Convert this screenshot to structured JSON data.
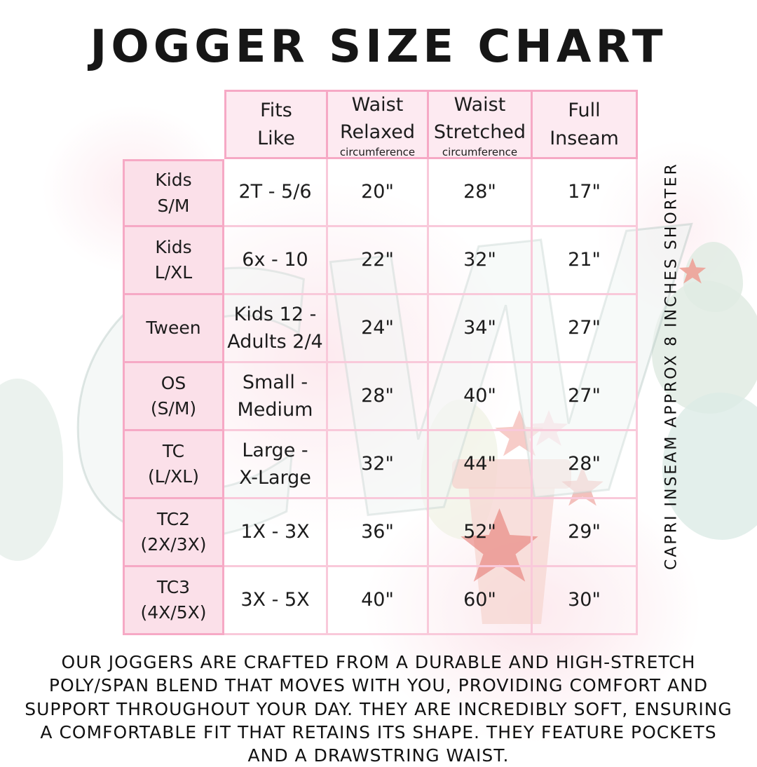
{
  "title": "JOGGER SIZE CHART",
  "watermark": "CW",
  "side_note": "CAPRI INSEAM APPROX 8 INCHES SHORTER",
  "description": "OUR JOGGERS ARE CRAFTED FROM A DURABLE AND HIGH-STRETCH POLY/SPAN BLEND THAT MOVES WITH YOU, PROVIDING COMFORT AND SUPPORT THROUGHOUT YOUR DAY. THEY ARE INCREDIBLY SOFT, ENSURING A COMFORTABLE FIT THAT RETAINS ITS SHAPE. THEY FEATURE POCKETS AND A DRAWSTRING WAIST.",
  "colors": {
    "border_strong_pink": "#f6a9c5",
    "grid_light_pink": "#f9c9da",
    "header_fill": "#fdeaf1",
    "label_fill": "#fbe0e9",
    "text": "#161616"
  },
  "table": {
    "columns": [
      {
        "label": "Fits\nLike",
        "sub": ""
      },
      {
        "label": "Waist\nRelaxed",
        "sub": "circumference"
      },
      {
        "label": "Waist\nStretched",
        "sub": "circumference"
      },
      {
        "label": "Full\nInseam",
        "sub": ""
      }
    ],
    "rows": [
      {
        "size": "Kids\nS/M",
        "fits_like": "2T - 5/6",
        "waist_relaxed": "20\"",
        "waist_stretched": "28\"",
        "full_inseam": "17\""
      },
      {
        "size": "Kids\nL/XL",
        "fits_like": "6x - 10",
        "waist_relaxed": "22\"",
        "waist_stretched": "32\"",
        "full_inseam": "21\""
      },
      {
        "size": "Tween",
        "fits_like": "Kids 12 -\nAdults 2/4",
        "waist_relaxed": "24\"",
        "waist_stretched": "34\"",
        "full_inseam": "27\""
      },
      {
        "size": "OS\n(S/M)",
        "fits_like": "Small -\nMedium",
        "waist_relaxed": "28\"",
        "waist_stretched": "40\"",
        "full_inseam": "27\""
      },
      {
        "size": "TC\n(L/XL)",
        "fits_like": "Large -\nX-Large",
        "waist_relaxed": "32\"",
        "waist_stretched": "44\"",
        "full_inseam": "28\""
      },
      {
        "size": "TC2\n(2X/3X)",
        "fits_like": "1X - 3X",
        "waist_relaxed": "36\"",
        "waist_stretched": "52\"",
        "full_inseam": "29\""
      },
      {
        "size": "TC3\n(4X/5X)",
        "fits_like": "3X - 5X",
        "waist_relaxed": "40\"",
        "waist_stretched": "60\"",
        "full_inseam": "30\""
      }
    ]
  }
}
